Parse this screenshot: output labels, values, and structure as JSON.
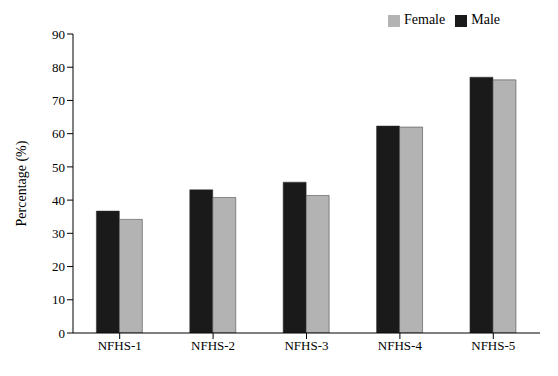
{
  "chart_data": {
    "type": "bar",
    "categories": [
      "NFHS-1",
      "NFHS-2",
      "NFHS-3",
      "NFHS-4",
      "NFHS-5"
    ],
    "series": [
      {
        "name": "Male",
        "color": "#1a1a1a",
        "values": [
          36.7,
          43.1,
          45.4,
          62.3,
          77.0
        ]
      },
      {
        "name": "Female",
        "color": "#b3b3b3",
        "values": [
          34.2,
          40.8,
          41.4,
          62.0,
          76.2
        ]
      }
    ],
    "y_label": "Percentage (%)",
    "ylim": [
      0,
      90
    ],
    "yticks": [
      0,
      10,
      20,
      30,
      40,
      50,
      60,
      70,
      80,
      90
    ],
    "grid": false,
    "legend": "top right"
  }
}
